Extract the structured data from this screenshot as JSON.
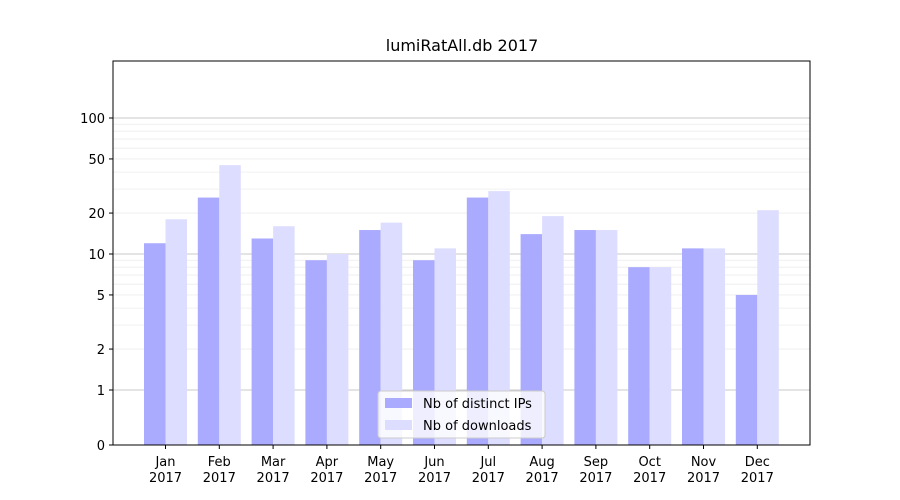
{
  "chart_data": {
    "type": "bar",
    "title": "lumiRatAll.db 2017",
    "xlabel": "",
    "ylabel": "",
    "y_scale": "symlog",
    "ylim": [
      0,
      120
    ],
    "y_ticks": [
      {
        "value": 0,
        "label": "0"
      },
      {
        "value": 1,
        "label": "1"
      },
      {
        "value": 2,
        "label": "2"
      },
      {
        "value": 5,
        "label": "5"
      },
      {
        "value": 10,
        "label": "10"
      },
      {
        "value": 20,
        "label": "20"
      },
      {
        "value": 50,
        "label": "50"
      },
      {
        "value": 100,
        "label": "100"
      }
    ],
    "categories": [
      [
        "Jan",
        "2017"
      ],
      [
        "Feb",
        "2017"
      ],
      [
        "Mar",
        "2017"
      ],
      [
        "Apr",
        "2017"
      ],
      [
        "May",
        "2017"
      ],
      [
        "Jun",
        "2017"
      ],
      [
        "Jul",
        "2017"
      ],
      [
        "Aug",
        "2017"
      ],
      [
        "Sep",
        "2017"
      ],
      [
        "Oct",
        "2017"
      ],
      [
        "Nov",
        "2017"
      ],
      [
        "Dec",
        "2017"
      ]
    ],
    "series": [
      {
        "name": "Nb of distinct IPs",
        "color": "#aaaaff",
        "values": [
          12,
          26,
          13,
          9,
          15,
          9,
          26,
          14,
          15,
          8,
          11,
          5
        ]
      },
      {
        "name": "Nb of downloads",
        "color": "#ddddff",
        "values": [
          18,
          45,
          16,
          10,
          17,
          11,
          29,
          19,
          15,
          8,
          11,
          21
        ]
      }
    ],
    "grid": "horizontal",
    "legend_position": "bottom-center"
  }
}
